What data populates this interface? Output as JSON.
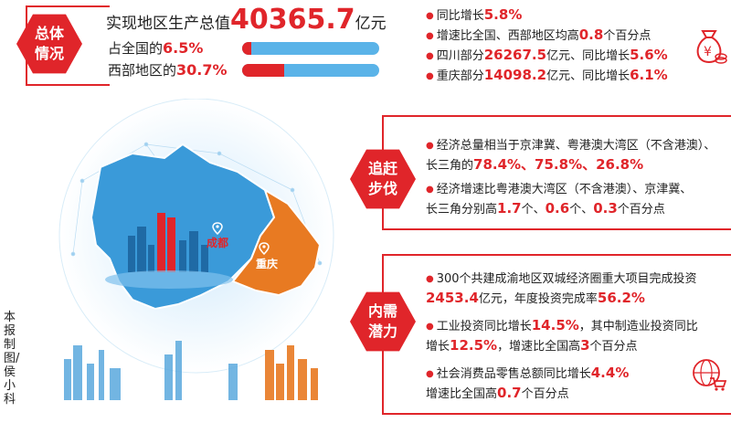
{
  "overview": {
    "badge_line1": "总体",
    "badge_line2": "情况",
    "gdp_label": "实现地区生产总值",
    "gdp_value": "40365.7",
    "gdp_unit": "亿元",
    "share_national_label": "占全国的",
    "share_national_value": "6.5%",
    "share_national_fraction": 0.065,
    "share_west_label": "西部地区的",
    "share_west_value": "30.7%",
    "share_west_fraction": 0.307,
    "right_lines": [
      {
        "pre": "同比增长",
        "hl": "5.8%",
        "post": ""
      },
      {
        "pre": "增速比全国、西部地区均高",
        "hl": "0.8",
        "post": "个百分点"
      },
      {
        "pre": "四川部分",
        "hl": "26267.5",
        "post": "亿元、同比增长",
        "hl2": "5.6%"
      },
      {
        "pre": "重庆部分",
        "hl": "14098.2",
        "post": "亿元、同比增长",
        "hl2": "6.1%"
      }
    ]
  },
  "catchup": {
    "badge_line1": "追赶",
    "badge_line2": "步伐",
    "p1_line1": "经济总量相当于京津冀、粤港澳大湾区（不含港澳）、",
    "p1_line2_pre": "长三角的",
    "p1_line2_vals": "78.4%、75.8%、26.8%",
    "p2_line1": "经济增速比粤港澳大湾区（不含港澳）、京津冀、",
    "p2_line2_pre": "长三角分别高",
    "p2_v1": "1.7",
    "p2_v2": "0.6",
    "p2_v3": "0.3",
    "unit_ge": "个、",
    "p2_tail": "个百分点"
  },
  "demand": {
    "badge_line1": "内需",
    "badge_line2": "潜力",
    "p1_line1": "300个共建成渝地区双城经济圈重大项目完成投资",
    "p1_v1": "2453.4",
    "p1_mid": "亿元，年度投资完成率",
    "p1_v2": "56.2%",
    "p2_line1_pre": "工业投资同比增长",
    "p2_v1": "14.5%",
    "p2_line1_post": "，其中制造业投资同比",
    "p2_line2_pre": "增长",
    "p2_v2": "12.5%",
    "p2_line2_mid": "，增速比全国高",
    "p2_v3": "3",
    "p2_line2_post": "个百分点",
    "p3_line1_pre": "社会消费品零售总额同比增长",
    "p3_v1": "4.4%",
    "p3_line2_pre": "增速比全国高",
    "p3_v2": "0.7",
    "p3_line2_post": "个百分点"
  },
  "map": {
    "label_chengdu": "成都",
    "label_chongqing": "重庆"
  },
  "credit": "本报制图/侯小科",
  "colors": {
    "accent": "#e0252a",
    "sichuan": "#3a9ad9",
    "chongqing": "#e87a22",
    "bar_bg": "#5ab3e8"
  },
  "icons": [
    "money-bag-icon",
    "shopping-cart-globe-icon",
    "location-pin-icon"
  ]
}
